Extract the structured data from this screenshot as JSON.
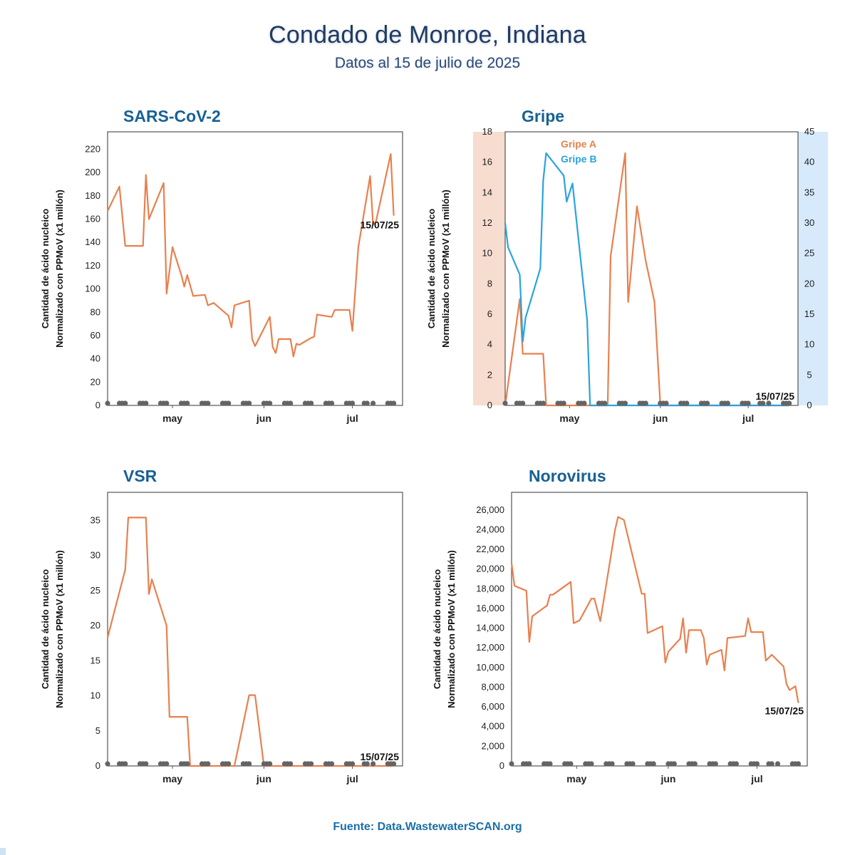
{
  "header": {
    "title": "Condado de Monroe, Indiana",
    "subtitle": "Datos al 15 de julio de 2025"
  },
  "source": "Fuente: Data.WastewaterSCAN.org",
  "colors": {
    "orange": "#e8804f",
    "blue": "#2ba3dc",
    "dots": "#646464",
    "title": "#176194",
    "flu_left_band": "#f7dcd0",
    "flu_right_band": "#d6eafb"
  },
  "chart_data": [
    {
      "id": "sars",
      "type": "line",
      "title": "SARS-CoV-2",
      "ylabel": [
        "Cantidad de ácido nucleico",
        "Normalizado con PPMoV (x1 millón)"
      ],
      "xlim": [
        "2025-04-09",
        "2025-07-18"
      ],
      "x_ticks": [
        {
          "date": "2025-05-01",
          "label": "may"
        },
        {
          "date": "2025-06-01",
          "label": "jun"
        },
        {
          "date": "2025-07-01",
          "label": "jul"
        }
      ],
      "ylim": [
        0,
        235
      ],
      "y_ticks": [
        0,
        20,
        40,
        60,
        80,
        100,
        120,
        140,
        160,
        180,
        200,
        220
      ],
      "end_label": "15/07/25",
      "series": [
        {
          "axis": "left",
          "color": "#e8804f",
          "points": [
            [
              "2025-04-09",
              167
            ],
            [
              "2025-04-13",
              188
            ],
            [
              "2025-04-15",
              137
            ],
            [
              "2025-04-21",
              137
            ],
            [
              "2025-04-22",
              198
            ],
            [
              "2025-04-23",
              160
            ],
            [
              "2025-04-28",
              191
            ],
            [
              "2025-04-29",
              96
            ],
            [
              "2025-05-01",
              136
            ],
            [
              "2025-05-04",
              112
            ],
            [
              "2025-05-05",
              102
            ],
            [
              "2025-05-06",
              112
            ],
            [
              "2025-05-08",
              94
            ],
            [
              "2025-05-12",
              95
            ],
            [
              "2025-05-13",
              86
            ],
            [
              "2025-05-15",
              88
            ],
            [
              "2025-05-20",
              77
            ],
            [
              "2025-05-21",
              67
            ],
            [
              "2025-05-22",
              86
            ],
            [
              "2025-05-27",
              90
            ],
            [
              "2025-05-28",
              57
            ],
            [
              "2025-05-29",
              51
            ],
            [
              "2025-06-03",
              76
            ],
            [
              "2025-06-04",
              50
            ],
            [
              "2025-06-05",
              45
            ],
            [
              "2025-06-06",
              57
            ],
            [
              "2025-06-10",
              57
            ],
            [
              "2025-06-11",
              42
            ],
            [
              "2025-06-12",
              53
            ],
            [
              "2025-06-13",
              52
            ],
            [
              "2025-06-17",
              58
            ],
            [
              "2025-06-18",
              59
            ],
            [
              "2025-06-19",
              78
            ],
            [
              "2025-06-24",
              76
            ],
            [
              "2025-06-25",
              82
            ],
            [
              "2025-06-30",
              82
            ],
            [
              "2025-07-01",
              64
            ],
            [
              "2025-07-03",
              136
            ],
            [
              "2025-07-07",
              197
            ],
            [
              "2025-07-08",
              155
            ],
            [
              "2025-07-09",
              158
            ],
            [
              "2025-07-14",
              216
            ],
            [
              "2025-07-15",
              163
            ]
          ]
        }
      ],
      "dots": [
        "2025-04-09",
        "2025-04-13",
        "2025-04-14",
        "2025-04-15",
        "2025-04-20",
        "2025-04-21",
        "2025-04-22",
        "2025-04-27",
        "2025-04-28",
        "2025-04-29",
        "2025-05-04",
        "2025-05-05",
        "2025-05-06",
        "2025-05-11",
        "2025-05-12",
        "2025-05-13",
        "2025-05-18",
        "2025-05-19",
        "2025-05-20",
        "2025-05-25",
        "2025-05-26",
        "2025-05-27",
        "2025-06-01",
        "2025-06-02",
        "2025-06-03",
        "2025-06-08",
        "2025-06-09",
        "2025-06-10",
        "2025-06-15",
        "2025-06-16",
        "2025-06-17",
        "2025-06-22",
        "2025-06-23",
        "2025-06-24",
        "2025-06-29",
        "2025-06-30",
        "2025-07-01",
        "2025-07-05",
        "2025-07-06",
        "2025-07-08",
        "2025-07-13",
        "2025-07-14",
        "2025-07-15"
      ]
    },
    {
      "id": "flu",
      "type": "line",
      "title": "Gripe",
      "ylabel": [
        "Cantidad de ácido nucleico",
        "Normalizado con PPMoV (x1 millón)"
      ],
      "xlim": [
        "2025-04-09",
        "2025-07-18"
      ],
      "x_ticks": [
        {
          "date": "2025-05-01",
          "label": "may"
        },
        {
          "date": "2025-06-01",
          "label": "jun"
        },
        {
          "date": "2025-07-01",
          "label": "jul"
        }
      ],
      "ylim": [
        0,
        18
      ],
      "y_ticks": [
        0,
        2,
        4,
        6,
        8,
        10,
        12,
        14,
        16,
        18
      ],
      "y2lim": [
        0,
        45
      ],
      "y2_ticks": [
        0,
        5,
        10,
        15,
        20,
        25,
        30,
        35,
        40,
        45
      ],
      "legend": [
        "Gripe A",
        "Gripe B"
      ],
      "legend_position": "top-left",
      "end_label": "15/07/25",
      "series": [
        {
          "name": "Gripe A",
          "axis": "left",
          "color": "#e8804f",
          "points": [
            [
              "2025-04-09",
              0
            ],
            [
              "2025-04-14",
              7
            ],
            [
              "2025-04-15",
              3.4
            ],
            [
              "2025-04-20",
              3.4
            ],
            [
              "2025-04-22",
              3.4
            ],
            [
              "2025-04-23",
              0
            ],
            [
              "2025-05-06",
              0
            ],
            [
              "2025-05-08",
              0
            ],
            [
              "2025-05-12",
              0
            ],
            [
              "2025-05-14",
              0
            ],
            [
              "2025-05-15",
              9.8
            ],
            [
              "2025-05-20",
              16.6
            ],
            [
              "2025-05-21",
              6.8
            ],
            [
              "2025-05-24",
              13.1
            ],
            [
              "2025-05-27",
              9.5
            ],
            [
              "2025-05-30",
              6.8
            ],
            [
              "2025-06-01",
              0
            ],
            [
              "2025-06-30",
              0
            ],
            [
              "2025-07-15",
              0
            ]
          ]
        },
        {
          "name": "Gripe B",
          "axis": "right",
          "color": "#2ba3dc",
          "points": [
            [
              "2025-04-09",
              30
            ],
            [
              "2025-04-10",
              26
            ],
            [
              "2025-04-14",
              21.5
            ],
            [
              "2025-04-15",
              10.5
            ],
            [
              "2025-04-16",
              14.5
            ],
            [
              "2025-04-21",
              22.5
            ],
            [
              "2025-04-22",
              37
            ],
            [
              "2025-04-23",
              41.5
            ],
            [
              "2025-04-29",
              37.8
            ],
            [
              "2025-04-30",
              33.5
            ],
            [
              "2025-05-02",
              36.5
            ],
            [
              "2025-05-07",
              14
            ],
            [
              "2025-05-08",
              0
            ],
            [
              "2025-07-15",
              0
            ]
          ]
        }
      ],
      "dots": [
        "2025-04-09",
        "2025-04-13",
        "2025-04-14",
        "2025-04-15",
        "2025-04-20",
        "2025-04-21",
        "2025-04-22",
        "2025-04-27",
        "2025-04-28",
        "2025-04-29",
        "2025-05-04",
        "2025-05-05",
        "2025-05-06",
        "2025-05-11",
        "2025-05-12",
        "2025-05-13",
        "2025-05-18",
        "2025-05-19",
        "2025-05-20",
        "2025-05-25",
        "2025-05-26",
        "2025-05-27",
        "2025-06-01",
        "2025-06-02",
        "2025-06-03",
        "2025-06-08",
        "2025-06-09",
        "2025-06-10",
        "2025-06-15",
        "2025-06-16",
        "2025-06-17",
        "2025-06-22",
        "2025-06-23",
        "2025-06-24",
        "2025-06-29",
        "2025-06-30",
        "2025-07-01",
        "2025-07-05",
        "2025-07-06",
        "2025-07-08",
        "2025-07-13",
        "2025-07-14",
        "2025-07-15"
      ]
    },
    {
      "id": "vsr",
      "type": "line",
      "title": "VSR",
      "ylabel": [
        "Cantidad de ácido nucleico",
        "Normalizado con PPMoV (x1 millón)"
      ],
      "xlim": [
        "2025-04-09",
        "2025-07-18"
      ],
      "x_ticks": [
        {
          "date": "2025-05-01",
          "label": "may"
        },
        {
          "date": "2025-06-01",
          "label": "jun"
        },
        {
          "date": "2025-07-01",
          "label": "jul"
        }
      ],
      "ylim": [
        0,
        39
      ],
      "y_ticks": [
        0,
        5,
        10,
        15,
        20,
        25,
        30,
        35
      ],
      "end_label": "15/07/25",
      "series": [
        {
          "axis": "left",
          "color": "#e8804f",
          "points": [
            [
              "2025-04-09",
              18.3
            ],
            [
              "2025-04-15",
              28
            ],
            [
              "2025-04-16",
              35.4
            ],
            [
              "2025-04-22",
              35.4
            ],
            [
              "2025-04-23",
              24.5
            ],
            [
              "2025-04-24",
              26.6
            ],
            [
              "2025-04-29",
              20
            ],
            [
              "2025-04-30",
              7
            ],
            [
              "2025-05-05",
              7
            ],
            [
              "2025-05-06",
              7
            ],
            [
              "2025-05-07",
              0
            ],
            [
              "2025-05-20",
              0
            ],
            [
              "2025-05-22",
              0
            ],
            [
              "2025-05-27",
              10.1
            ],
            [
              "2025-05-29",
              10.1
            ],
            [
              "2025-06-01",
              0
            ],
            [
              "2025-07-15",
              0
            ]
          ]
        }
      ],
      "dots": [
        "2025-04-09",
        "2025-04-13",
        "2025-04-14",
        "2025-04-15",
        "2025-04-20",
        "2025-04-21",
        "2025-04-22",
        "2025-04-27",
        "2025-04-28",
        "2025-04-29",
        "2025-05-04",
        "2025-05-05",
        "2025-05-06",
        "2025-05-11",
        "2025-05-12",
        "2025-05-13",
        "2025-05-18",
        "2025-05-19",
        "2025-05-20",
        "2025-05-25",
        "2025-05-26",
        "2025-05-27",
        "2025-06-01",
        "2025-06-02",
        "2025-06-03",
        "2025-06-08",
        "2025-06-09",
        "2025-06-10",
        "2025-06-15",
        "2025-06-16",
        "2025-06-17",
        "2025-06-22",
        "2025-06-23",
        "2025-06-24",
        "2025-06-29",
        "2025-06-30",
        "2025-07-01",
        "2025-07-05",
        "2025-07-06",
        "2025-07-08",
        "2025-07-13",
        "2025-07-14",
        "2025-07-15"
      ]
    },
    {
      "id": "noro",
      "type": "line",
      "title": "Norovirus",
      "ylabel": [
        "Cantidad de ácido nucleico",
        "Normalizado con PPMoV (x1 millón)"
      ],
      "xlim": [
        "2025-04-09",
        "2025-07-18"
      ],
      "x_ticks": [
        {
          "date": "2025-05-01",
          "label": "may"
        },
        {
          "date": "2025-06-01",
          "label": "jun"
        },
        {
          "date": "2025-07-01",
          "label": "jul"
        }
      ],
      "ylim": [
        0,
        27800
      ],
      "y_ticks": [
        0,
        2000,
        4000,
        6000,
        8000,
        10000,
        12000,
        14000,
        16000,
        18000,
        20000,
        22000,
        24000,
        26000
      ],
      "end_label": "15/07/25",
      "series": [
        {
          "axis": "left",
          "color": "#e8804f",
          "points": [
            [
              "2025-04-09",
              20600
            ],
            [
              "2025-04-10",
              18300
            ],
            [
              "2025-04-14",
              17800
            ],
            [
              "2025-04-15",
              12600
            ],
            [
              "2025-04-16",
              15200
            ],
            [
              "2025-04-21",
              16300
            ],
            [
              "2025-04-22",
              17400
            ],
            [
              "2025-04-23",
              17400
            ],
            [
              "2025-04-29",
              18700
            ],
            [
              "2025-04-30",
              14500
            ],
            [
              "2025-05-02",
              14800
            ],
            [
              "2025-05-06",
              17000
            ],
            [
              "2025-05-07",
              17000
            ],
            [
              "2025-05-09",
              14700
            ],
            [
              "2025-05-14",
              24000
            ],
            [
              "2025-05-15",
              25300
            ],
            [
              "2025-05-17",
              25000
            ],
            [
              "2025-05-23",
              17500
            ],
            [
              "2025-05-24",
              17500
            ],
            [
              "2025-05-25",
              13500
            ],
            [
              "2025-05-30",
              14200
            ],
            [
              "2025-05-31",
              10500
            ],
            [
              "2025-06-01",
              11600
            ],
            [
              "2025-06-04",
              12600
            ],
            [
              "2025-06-05",
              12900
            ],
            [
              "2025-06-06",
              15000
            ],
            [
              "2025-06-07",
              11500
            ],
            [
              "2025-06-08",
              13800
            ],
            [
              "2025-06-12",
              13800
            ],
            [
              "2025-06-13",
              13000
            ],
            [
              "2025-06-14",
              10300
            ],
            [
              "2025-06-15",
              11300
            ],
            [
              "2025-06-19",
              11800
            ],
            [
              "2025-06-20",
              9700
            ],
            [
              "2025-06-21",
              13000
            ],
            [
              "2025-06-27",
              13200
            ],
            [
              "2025-06-28",
              15000
            ],
            [
              "2025-06-29",
              13600
            ],
            [
              "2025-07-03",
              13600
            ],
            [
              "2025-07-04",
              10700
            ],
            [
              "2025-07-06",
              11300
            ],
            [
              "2025-07-10",
              10100
            ],
            [
              "2025-07-11",
              8300
            ],
            [
              "2025-07-12",
              7700
            ],
            [
              "2025-07-14",
              8100
            ],
            [
              "2025-07-15",
              6400
            ]
          ]
        }
      ],
      "dots": [
        "2025-04-09",
        "2025-04-13",
        "2025-04-14",
        "2025-04-15",
        "2025-04-20",
        "2025-04-21",
        "2025-04-22",
        "2025-04-27",
        "2025-04-28",
        "2025-04-29",
        "2025-05-04",
        "2025-05-05",
        "2025-05-06",
        "2025-05-11",
        "2025-05-12",
        "2025-05-13",
        "2025-05-18",
        "2025-05-19",
        "2025-05-20",
        "2025-05-25",
        "2025-05-26",
        "2025-05-27",
        "2025-06-01",
        "2025-06-02",
        "2025-06-03",
        "2025-06-08",
        "2025-06-09",
        "2025-06-10",
        "2025-06-15",
        "2025-06-16",
        "2025-06-17",
        "2025-06-22",
        "2025-06-23",
        "2025-06-24",
        "2025-06-29",
        "2025-06-30",
        "2025-07-01",
        "2025-07-05",
        "2025-07-06",
        "2025-07-08",
        "2025-07-13",
        "2025-07-14",
        "2025-07-15"
      ]
    }
  ]
}
